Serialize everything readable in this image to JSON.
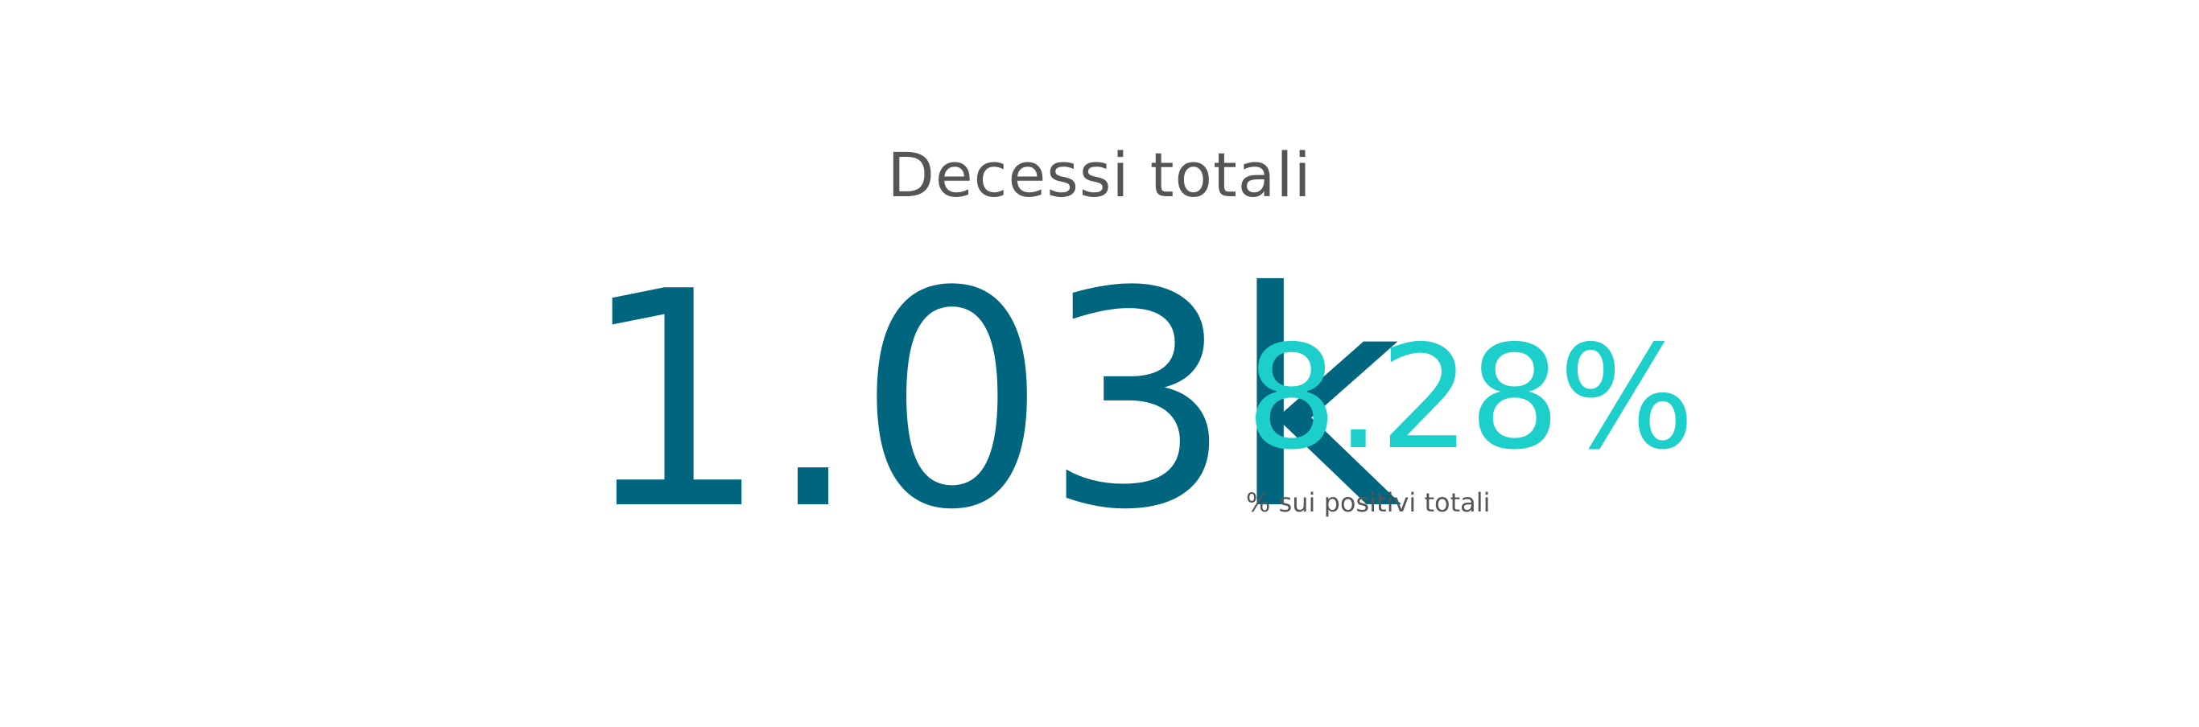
{
  "card": {
    "title": "Decessi totali",
    "main_value": "1.03k",
    "secondary_value": "8.28%",
    "secondary_caption": "% sui positivi totali"
  },
  "colors": {
    "title": "#555555",
    "main_value": "#006680",
    "secondary_value": "#1ccfcb",
    "caption": "#555555",
    "background": "#ffffff"
  }
}
